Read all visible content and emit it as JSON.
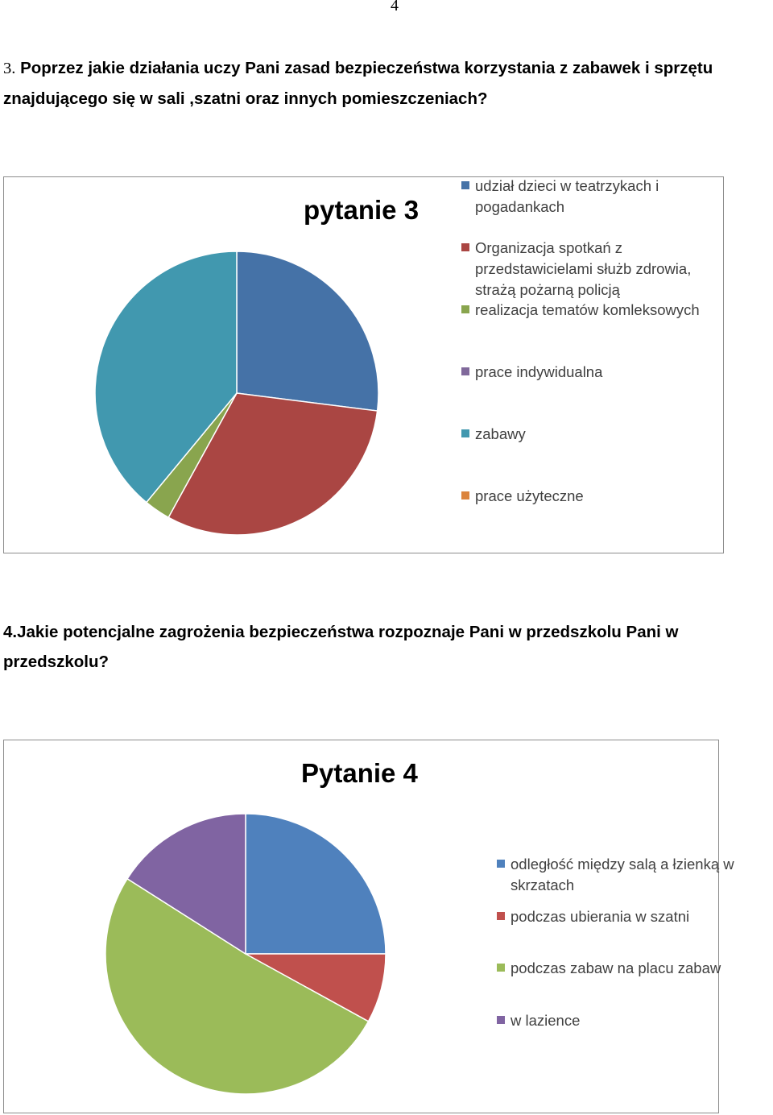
{
  "page_number": "4",
  "q3": {
    "number": "3.",
    "text": " Poprzez jakie działania uczy Pani zasad bezpieczeństwa korzystania z zabawek i sprzętu znajdującego się w sali ,szatni oraz innych pomieszczeniach?"
  },
  "q4": {
    "text": "4.Jakie potencjalne zagrożenia  bezpieczeństwa rozpoznaje Pani w przedszkolu Pani w przedszkolu?"
  },
  "chart_data": [
    {
      "type": "pie",
      "title": "pytanie 3",
      "legend_position": "right",
      "categories": [
        "udział  dzieci  w teatrzykach  i pogadankach",
        "Organizacja spotkań z przedstawicielami służb zdrowia, strażą pożarną policją",
        "realizacja  tematów komleksowych",
        "prace  indywidualna",
        "zabawy",
        "prace użyteczne"
      ],
      "values": [
        27,
        31,
        3,
        0,
        39,
        0
      ],
      "colors": [
        "#4572a7",
        "#aa4643",
        "#89a54e",
        "#80699b",
        "#4198af",
        "#db843d"
      ]
    },
    {
      "type": "pie",
      "title": "Pytanie 4",
      "legend_position": "right",
      "categories": [
        "odległość  między salą a łzienką w skrzatach",
        "podczas ubierania  w szatni",
        "podczas zabaw na placu zabaw",
        "w lazience"
      ],
      "values": [
        25,
        8,
        51,
        16
      ],
      "colors": [
        "#4f81bd",
        "#c0504d",
        "#9bbb59",
        "#8064a2"
      ]
    }
  ]
}
